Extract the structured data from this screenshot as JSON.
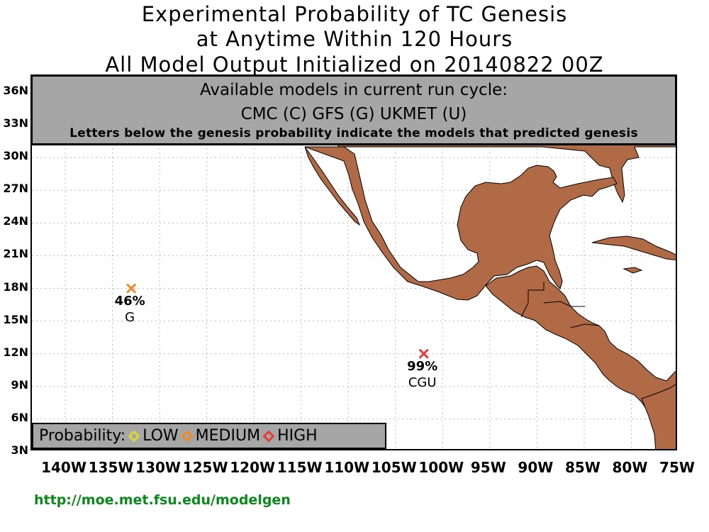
{
  "title": {
    "line1": "Experimental Probability of TC Genesis",
    "line2": "at Anytime Within 120 Hours",
    "line3": "All Model Output Initialized on 20140822 00Z"
  },
  "info_box": {
    "line1": "Available models in current run cycle:",
    "line2": "CMC (C) GFS (G)  UKMET (U)",
    "line3": "Letters below the genesis probability indicate the models that predicted genesis"
  },
  "axes": {
    "lat_labels": [
      "36N",
      "33N",
      "30N",
      "27N",
      "24N",
      "21N",
      "18N",
      "15N",
      "12N",
      "9N",
      "6N",
      "3N"
    ],
    "lon_labels": [
      "140W",
      "135W",
      "130W",
      "125W",
      "120W",
      "115W",
      "110W",
      "105W",
      "100W",
      "95W",
      "90W",
      "85W",
      "80W",
      "75W"
    ],
    "lat_range": [
      3,
      37.5
    ],
    "lon_range": [
      -145,
      -75
    ]
  },
  "storms": [
    {
      "lon": -133,
      "lat": 18,
      "probability": "46%",
      "models": "G",
      "category": "medium"
    },
    {
      "lon": -102,
      "lat": 12,
      "probability": "99%",
      "models": "CGU",
      "category": "high"
    }
  ],
  "legend": {
    "label": "Probability:",
    "items": [
      {
        "label": "LOW",
        "color": "#d8d838"
      },
      {
        "label": "MEDIUM",
        "color": "#f08a24"
      },
      {
        "label": "HIGH",
        "color": "#e83a3a"
      }
    ]
  },
  "colors": {
    "land": "#b06a45",
    "info_box": "#a6a6a6",
    "url": "#0a8a1a"
  },
  "url": "http://moe.met.fsu.edu/modelgen"
}
